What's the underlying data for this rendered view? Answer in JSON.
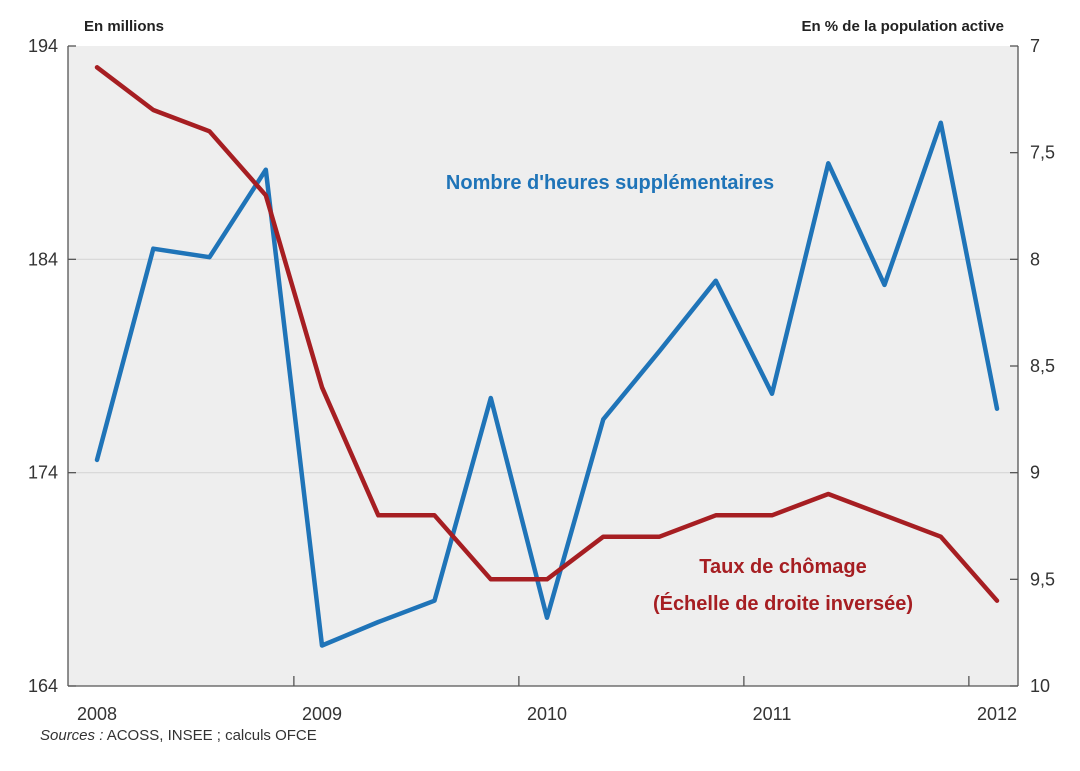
{
  "chart_data": {
    "type": "line",
    "left_axis_unit": "En millions",
    "right_axis_unit": "En % de la population active",
    "x_ticks": [
      "2008",
      "2009",
      "2010",
      "2011",
      "2012"
    ],
    "y_left": {
      "lim": [
        164,
        194
      ],
      "ticks": [
        "194",
        "184",
        "174",
        "164"
      ]
    },
    "y_right": {
      "lim": [
        7,
        10
      ],
      "inverted": true,
      "ticks": [
        "7",
        "7,5",
        "8",
        "8,5",
        "9",
        "9,5",
        "10"
      ]
    },
    "grid": true,
    "series": [
      {
        "name": "Nombre d'heures supplémentaires",
        "axis": "left",
        "color": "#1f74b8",
        "x": [
          2008.0,
          2008.25,
          2008.5,
          2008.75,
          2009.0,
          2009.25,
          2009.5,
          2009.75,
          2010.0,
          2010.25,
          2010.5,
          2010.75,
          2011.0,
          2011.25,
          2011.5,
          2011.75,
          2012.0
        ],
        "values": [
          174.6,
          184.5,
          184.1,
          188.2,
          165.9,
          167.0,
          168.0,
          177.5,
          167.2,
          176.5,
          179.7,
          183.0,
          177.7,
          188.5,
          182.8,
          190.4,
          177.0
        ]
      },
      {
        "name": "Taux de chômage",
        "name_line2": "(Échelle de droite inversée)",
        "axis": "right",
        "color": "#a61e22",
        "x": [
          2008.0,
          2008.25,
          2008.5,
          2008.75,
          2009.0,
          2009.25,
          2009.5,
          2009.75,
          2010.0,
          2010.25,
          2010.5,
          2010.75,
          2011.0,
          2011.25,
          2011.5,
          2011.75,
          2012.0
        ],
        "values": [
          7.1,
          7.3,
          7.4,
          7.7,
          8.6,
          9.2,
          9.2,
          9.5,
          9.5,
          9.3,
          9.3,
          9.2,
          9.2,
          9.1,
          9.2,
          9.3,
          9.6
        ]
      }
    ]
  },
  "source": {
    "prefix": "Sources :",
    "text": " ACOSS, INSEE ; calculs OFCE"
  }
}
